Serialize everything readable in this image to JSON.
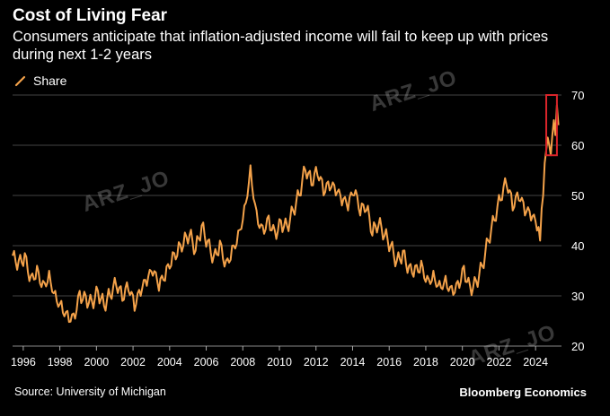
{
  "header": {
    "title": "Cost of Living Fear",
    "subtitle": "Consumers anticipate that inflation-adjusted income will fail to keep up with prices during next 1-2 years"
  },
  "footer": {
    "source": "Source: University of Michigan",
    "brand": "Bloomberg Economics"
  },
  "watermarks": [
    "ARZ_JO",
    "ARZ_JO",
    "ARZ_JO"
  ],
  "colors": {
    "series": "#f4a24a",
    "highlight": "#d9242a",
    "grid": "#444444",
    "background": "#000000"
  },
  "chart_data": {
    "type": "line",
    "title": "Cost of Living Fear",
    "legend": {
      "position": "top-left",
      "entries": [
        "Share"
      ]
    },
    "x_ticks": [
      "1996",
      "1998",
      "2000",
      "2002",
      "2004",
      "2006",
      "2008",
      "2010",
      "2012",
      "2014",
      "2016",
      "2018",
      "2020",
      "2022",
      "2024"
    ],
    "y_ticks": [
      "20",
      "30",
      "40",
      "50",
      "60",
      "70"
    ],
    "xlim": [
      "1995-06",
      "2025-06"
    ],
    "ylim": [
      20,
      70
    ],
    "y_axis_side": "right",
    "grid": "horizontal",
    "highlight_box": {
      "x_range": [
        "2024-08",
        "2025-03"
      ],
      "y_range": [
        58,
        70
      ]
    },
    "series": [
      {
        "name": "Share",
        "points": [
          [
            "1995-06",
            38
          ],
          [
            "1995-10",
            37
          ],
          [
            "1996-02",
            38.5
          ],
          [
            "1996-06",
            34
          ],
          [
            "1996-10",
            36
          ],
          [
            "1997-02",
            33
          ],
          [
            "1997-06",
            35
          ],
          [
            "1997-10",
            31
          ],
          [
            "1998-02",
            29
          ],
          [
            "1998-06",
            27
          ],
          [
            "1998-10",
            26.5
          ],
          [
            "1999-02",
            31
          ],
          [
            "1999-06",
            30
          ],
          [
            "1999-10",
            29
          ],
          [
            "2000-02",
            31
          ],
          [
            "2000-06",
            28
          ],
          [
            "2000-10",
            30
          ],
          [
            "2001-02",
            32
          ],
          [
            "2001-06",
            29
          ],
          [
            "2001-10",
            31
          ],
          [
            "2002-02",
            27
          ],
          [
            "2002-06",
            30
          ],
          [
            "2002-10",
            32
          ],
          [
            "2003-02",
            34
          ],
          [
            "2003-06",
            31
          ],
          [
            "2003-10",
            33
          ],
          [
            "2004-02",
            36
          ],
          [
            "2004-06",
            38
          ],
          [
            "2004-10",
            40
          ],
          [
            "2005-02",
            42
          ],
          [
            "2005-06",
            39
          ],
          [
            "2005-10",
            44
          ],
          [
            "2006-02",
            41
          ],
          [
            "2006-06",
            38
          ],
          [
            "2006-10",
            41
          ],
          [
            "2007-02",
            37
          ],
          [
            "2007-06",
            40
          ],
          [
            "2007-10",
            43
          ],
          [
            "2008-02",
            48
          ],
          [
            "2008-06",
            56
          ],
          [
            "2008-10",
            47
          ],
          [
            "2009-02",
            44
          ],
          [
            "2009-06",
            46
          ],
          [
            "2009-10",
            43
          ],
          [
            "2010-02",
            45
          ],
          [
            "2010-06",
            44
          ],
          [
            "2010-10",
            47
          ],
          [
            "2011-02",
            50
          ],
          [
            "2011-06",
            55
          ],
          [
            "2011-10",
            52
          ],
          [
            "2012-02",
            54
          ],
          [
            "2012-06",
            50
          ],
          [
            "2012-10",
            51
          ],
          [
            "2013-02",
            50
          ],
          [
            "2013-06",
            48
          ],
          [
            "2013-10",
            47
          ],
          [
            "2014-02",
            50
          ],
          [
            "2014-06",
            46
          ],
          [
            "2014-10",
            47
          ],
          [
            "2015-02",
            42
          ],
          [
            "2015-06",
            44
          ],
          [
            "2015-10",
            42
          ],
          [
            "2016-02",
            40
          ],
          [
            "2016-06",
            37
          ],
          [
            "2016-10",
            39
          ],
          [
            "2017-02",
            36
          ],
          [
            "2017-06",
            36
          ],
          [
            "2017-10",
            37
          ],
          [
            "2018-02",
            34
          ],
          [
            "2018-06",
            35
          ],
          [
            "2018-10",
            33
          ],
          [
            "2019-02",
            34
          ],
          [
            "2019-06",
            32
          ],
          [
            "2019-10",
            33
          ],
          [
            "2020-02",
            36
          ],
          [
            "2020-06",
            32
          ],
          [
            "2020-10",
            33
          ],
          [
            "2021-02",
            36
          ],
          [
            "2021-06",
            41
          ],
          [
            "2021-10",
            45
          ],
          [
            "2022-02",
            49
          ],
          [
            "2022-06",
            52
          ],
          [
            "2022-10",
            47
          ],
          [
            "2023-02",
            49
          ],
          [
            "2023-06",
            46
          ],
          [
            "2023-10",
            45
          ],
          [
            "2024-02",
            43
          ],
          [
            "2024-04",
            41
          ],
          [
            "2024-06",
            50
          ],
          [
            "2024-08",
            59
          ],
          [
            "2024-10",
            60
          ],
          [
            "2024-11",
            58
          ],
          [
            "2024-12",
            62
          ],
          [
            "2025-01",
            65
          ],
          [
            "2025-02",
            62
          ],
          [
            "2025-03",
            68
          ],
          [
            "2025-04",
            64
          ]
        ]
      }
    ]
  }
}
